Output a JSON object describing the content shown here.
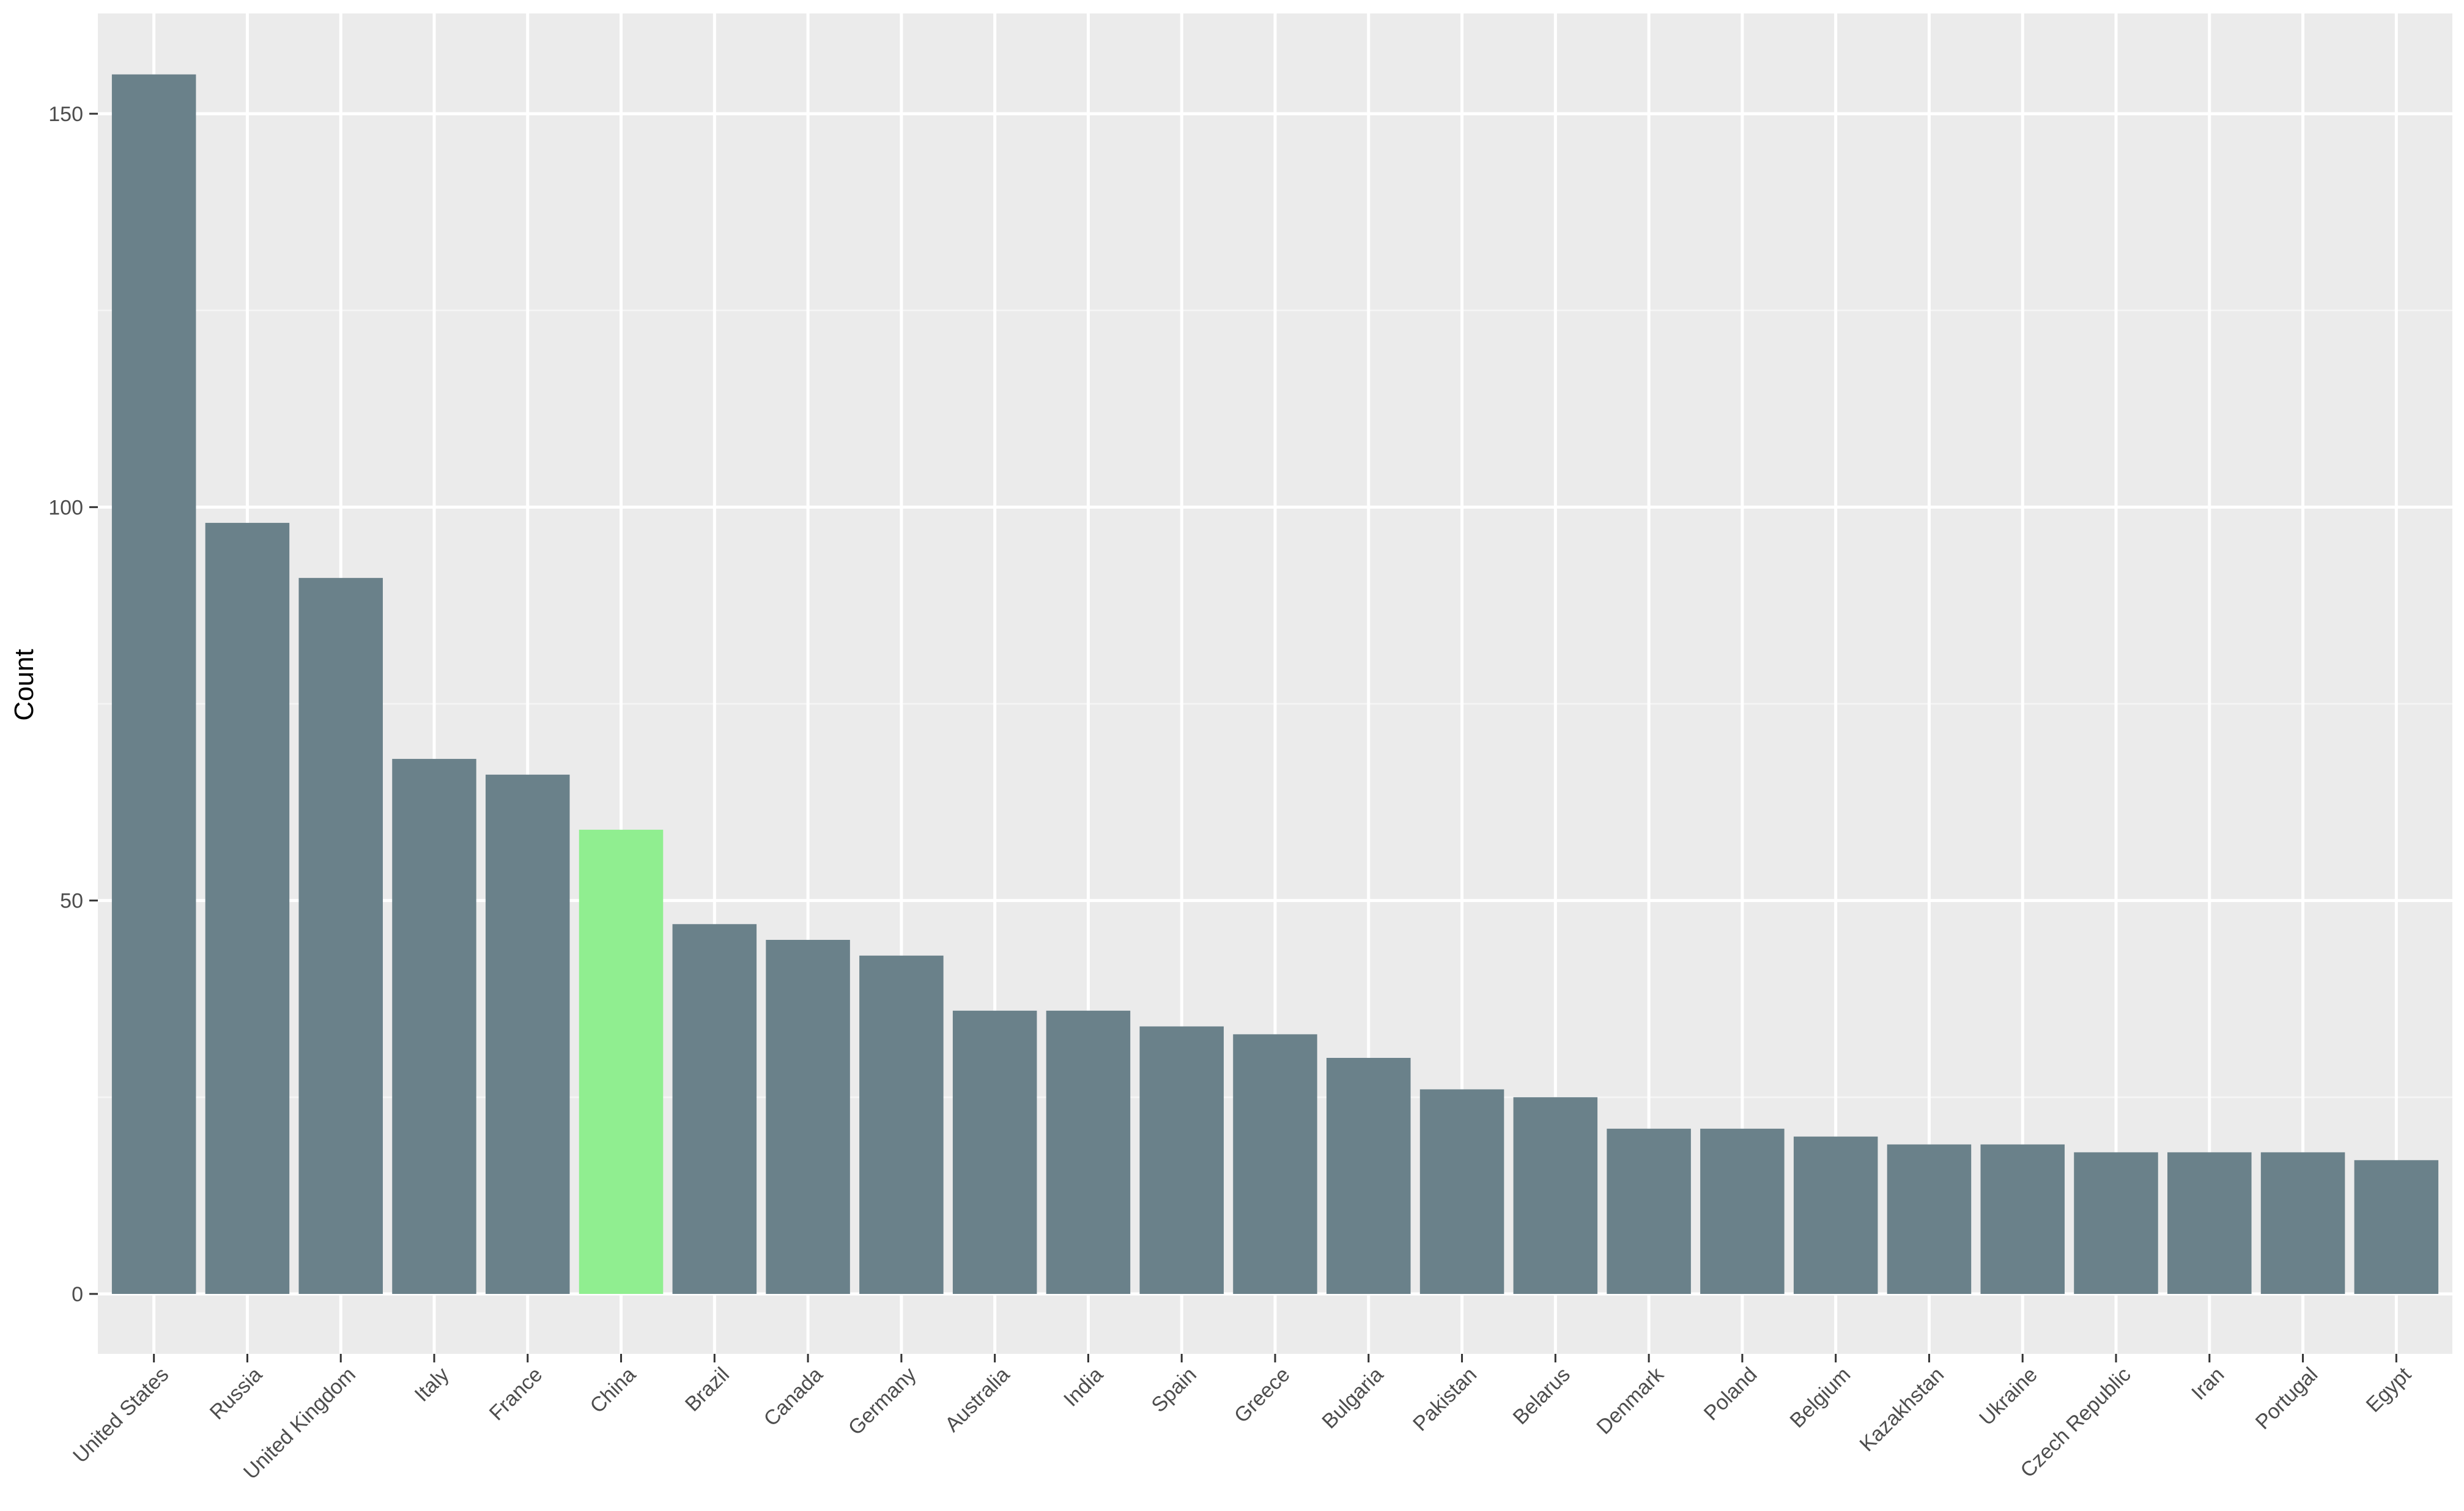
{
  "chart_data": {
    "type": "bar",
    "title": "",
    "xlabel": "",
    "ylabel": "Count",
    "ylim": [
      0,
      160
    ],
    "yticks": [
      0,
      50,
      100,
      150
    ],
    "grid": true,
    "legend": "none",
    "categories": [
      "United States",
      "Russia",
      "United Kingdom",
      "Italy",
      "France",
      "China",
      "Brazil",
      "Canada",
      "Germany",
      "Australia",
      "India",
      "Spain",
      "Greece",
      "Bulgaria",
      "Pakistan",
      "Belarus",
      "Denmark",
      "Poland",
      "Belgium",
      "Kazakhstan",
      "Ukraine",
      "Czech Republic",
      "Iran",
      "Portugal",
      "Egypt"
    ],
    "values": [
      155,
      98,
      91,
      68,
      66,
      59,
      47,
      45,
      43,
      36,
      36,
      34,
      33,
      30,
      26,
      25,
      21,
      21,
      20,
      19,
      19,
      18,
      18,
      18,
      17
    ],
    "highlight": "China",
    "colors": {
      "bar": "#6a818a",
      "highlight": "#90ee90",
      "panel": "#ebebeb",
      "grid_major": "#ffffff",
      "grid_minor": "#f5f5f5"
    }
  }
}
